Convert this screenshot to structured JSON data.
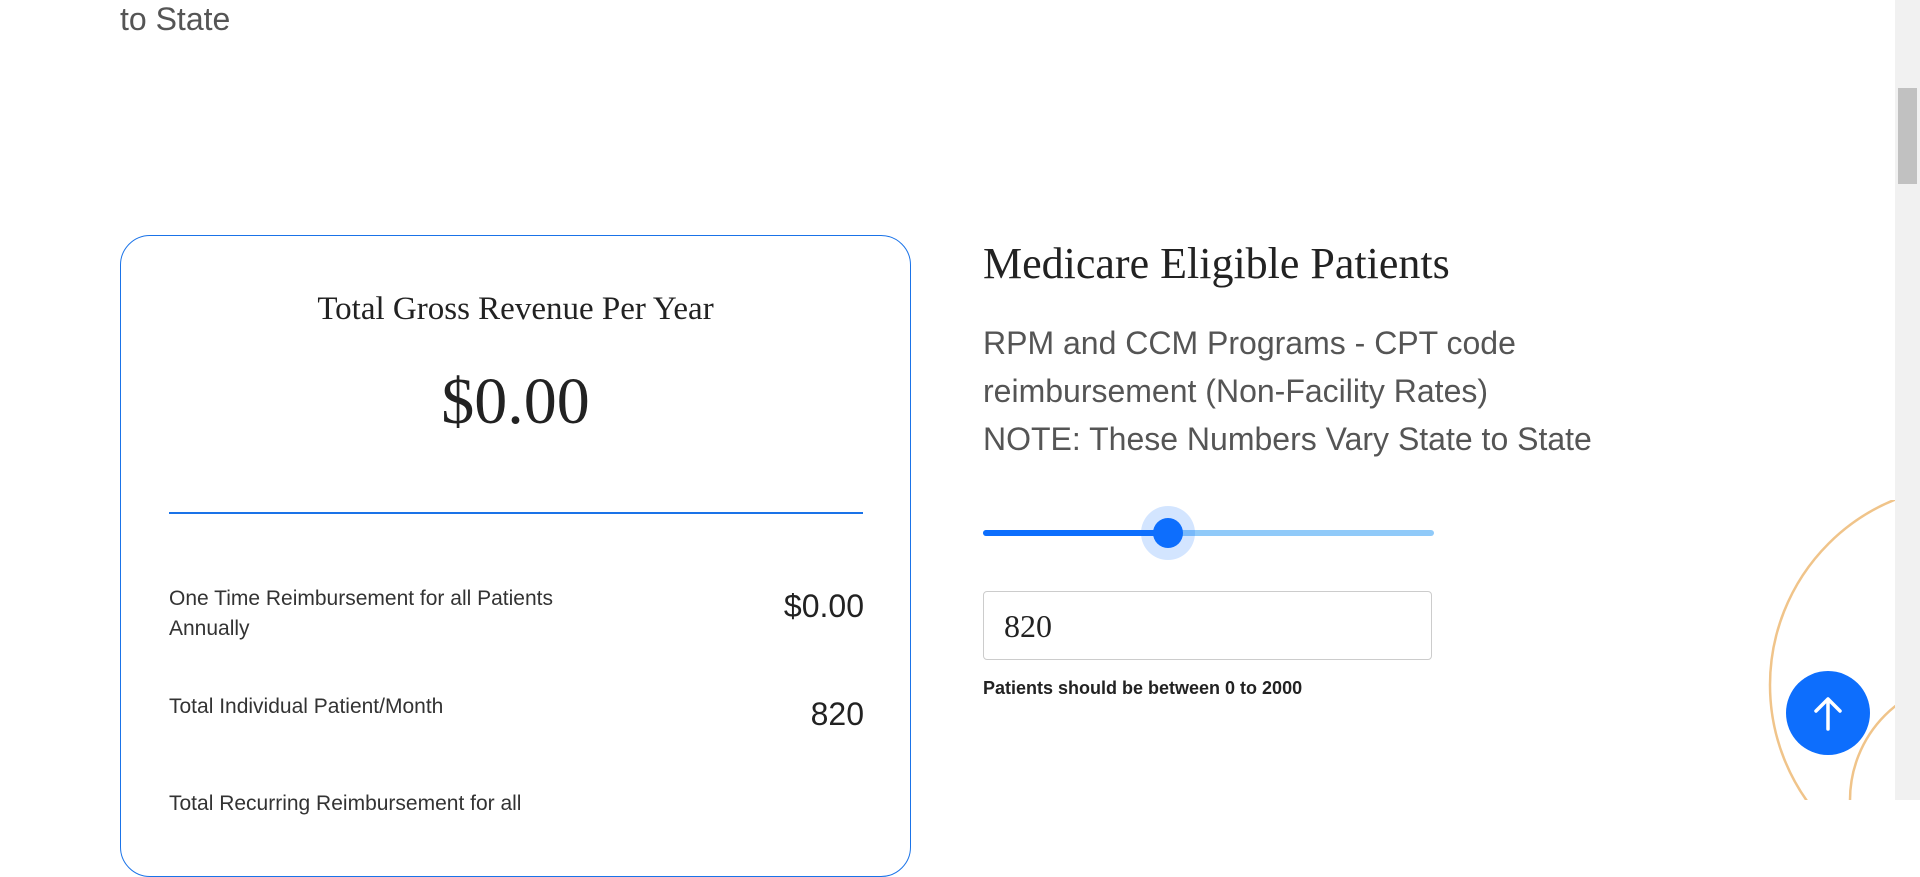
{
  "header": {
    "fragment": "to State"
  },
  "card": {
    "title": "Total Gross Revenue Per Year",
    "total": "$0.00",
    "rows": [
      {
        "label": "One Time Reimbursement for all Patients Annually",
        "value": "$0.00"
      },
      {
        "label": "Total Individual Patient/Month",
        "value": "820"
      },
      {
        "label": "Total Recurring Reimbursement for all",
        "value": ""
      }
    ]
  },
  "panel": {
    "title": "Medicare Eligible Patients",
    "description": [
      "RPM and CCM Programs - CPT code",
      "reimbursement (Non-Facility Rates)",
      "NOTE: These Numbers Vary State to State"
    ],
    "input": "820",
    "hint": "Patients should be between 0 to 2000"
  }
}
